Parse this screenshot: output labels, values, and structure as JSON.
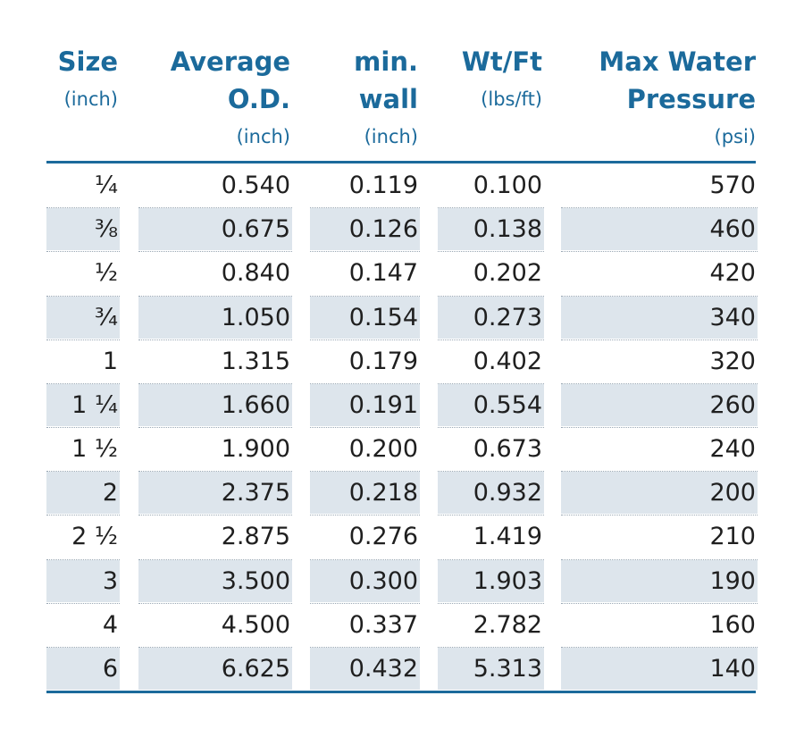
{
  "table": {
    "columns": [
      {
        "title": [
          "Size"
        ],
        "unit": "(inch)"
      },
      {
        "title": [
          "Average",
          "O.D."
        ],
        "unit": "(inch)"
      },
      {
        "title": [
          "min.",
          "wall"
        ],
        "unit": "(inch)"
      },
      {
        "title": [
          "Wt/Ft"
        ],
        "unit": "(lbs/ft)"
      },
      {
        "title": [
          "Max Water",
          "Pressure"
        ],
        "unit": "(psi)"
      }
    ],
    "rows": [
      [
        "¼",
        "0.540",
        "0.119",
        "0.100",
        "570"
      ],
      [
        "⅜",
        "0.675",
        "0.126",
        "0.138",
        "460"
      ],
      [
        "½",
        "0.840",
        "0.147",
        "0.202",
        "420"
      ],
      [
        "¾",
        "1.050",
        "0.154",
        "0.273",
        "340"
      ],
      [
        "1",
        "1.315",
        "0.179",
        "0.402",
        "320"
      ],
      [
        "1 ¼",
        "1.660",
        "0.191",
        "0.554",
        "260"
      ],
      [
        "1 ½",
        "1.900",
        "0.200",
        "0.673",
        "240"
      ],
      [
        "2",
        "2.375",
        "0.218",
        "0.932",
        "200"
      ],
      [
        "2 ½",
        "2.875",
        "0.276",
        "1.419",
        "210"
      ],
      [
        "3",
        "3.500",
        "0.300",
        "1.903",
        "190"
      ],
      [
        "4",
        "4.500",
        "0.337",
        "2.782",
        "160"
      ],
      [
        "6",
        "6.625",
        "0.432",
        "5.313",
        "140"
      ]
    ]
  }
}
